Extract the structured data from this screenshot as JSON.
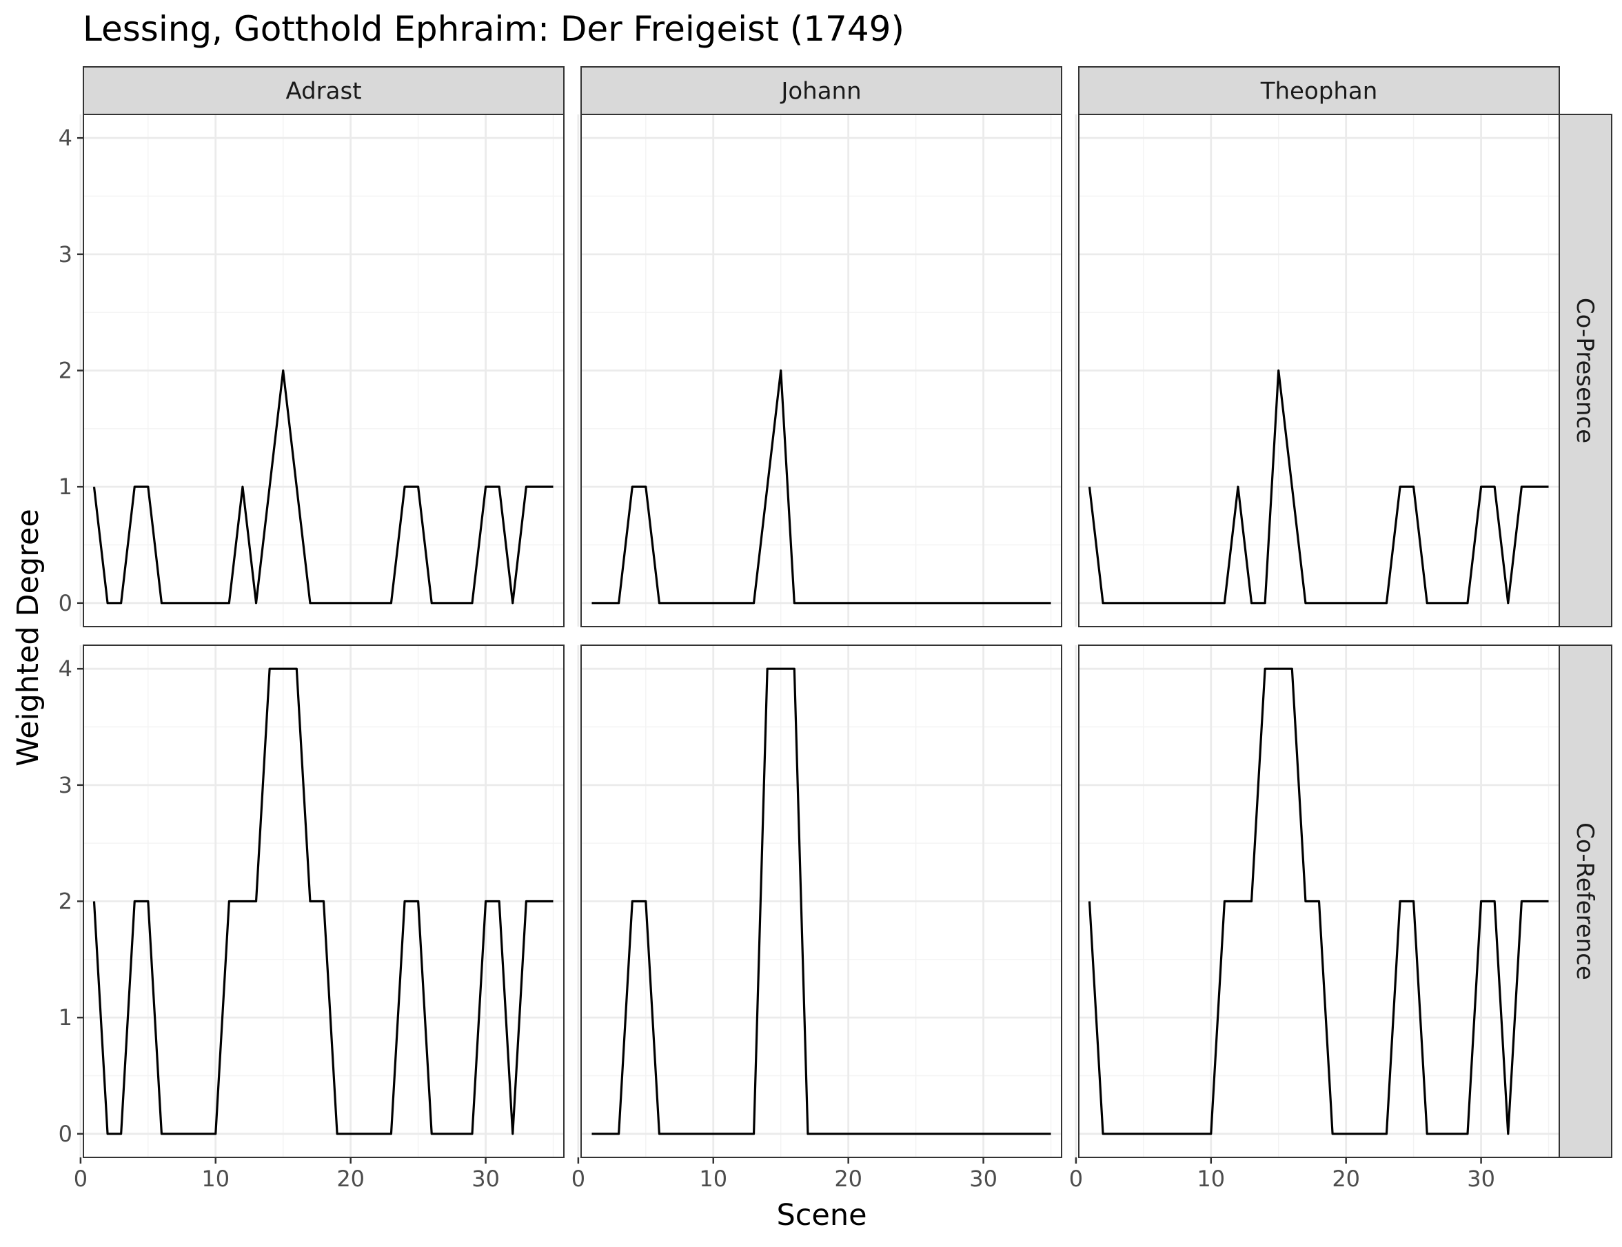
{
  "chart_data": {
    "type": "line",
    "title": "Lessing, Gotthold Ephraim: Der Freigeist (1749)",
    "xlabel": "Scene",
    "ylabel": "Weighted Degree",
    "xlim": [
      0,
      36
    ],
    "ylim": [
      0,
      4
    ],
    "x_ticks": [
      0,
      10,
      20,
      30
    ],
    "y_ticks": [
      0,
      1,
      2,
      3,
      4
    ],
    "grid": true,
    "columns": [
      "Adrast",
      "Johann",
      "Theophan"
    ],
    "rows": [
      "Co-Presence",
      "Co-Reference"
    ],
    "x": [
      1,
      2,
      3,
      4,
      5,
      6,
      7,
      8,
      9,
      10,
      11,
      12,
      13,
      14,
      15,
      16,
      17,
      18,
      19,
      20,
      21,
      22,
      23,
      24,
      25,
      26,
      27,
      28,
      29,
      30,
      31,
      32,
      33,
      34,
      35
    ],
    "panels": [
      {
        "column": "Adrast",
        "row": "Co-Presence",
        "values": [
          1,
          0,
          0,
          1,
          1,
          0,
          0,
          0,
          0,
          0,
          0,
          1,
          0,
          1,
          2,
          1,
          0,
          0,
          0,
          0,
          0,
          0,
          0,
          1,
          1,
          0,
          0,
          0,
          0,
          1,
          1,
          0,
          1,
          1,
          1
        ]
      },
      {
        "column": "Johann",
        "row": "Co-Presence",
        "values": [
          0,
          0,
          0,
          1,
          1,
          0,
          0,
          0,
          0,
          0,
          0,
          0,
          0,
          1,
          2,
          0,
          0,
          0,
          0,
          0,
          0,
          0,
          0,
          0,
          0,
          0,
          0,
          0,
          0,
          0,
          0,
          0,
          0,
          0,
          0
        ]
      },
      {
        "column": "Theophan",
        "row": "Co-Presence",
        "values": [
          1,
          0,
          0,
          0,
          0,
          0,
          0,
          0,
          0,
          0,
          0,
          1,
          0,
          0,
          2,
          1,
          0,
          0,
          0,
          0,
          0,
          0,
          0,
          1,
          1,
          0,
          0,
          0,
          0,
          1,
          1,
          0,
          1,
          1,
          1
        ]
      },
      {
        "column": "Adrast",
        "row": "Co-Reference",
        "values": [
          2,
          0,
          0,
          2,
          2,
          0,
          0,
          0,
          0,
          0,
          2,
          2,
          2,
          4,
          4,
          4,
          2,
          2,
          0,
          0,
          0,
          0,
          0,
          2,
          2,
          0,
          0,
          0,
          0,
          2,
          2,
          0,
          2,
          2,
          2
        ]
      },
      {
        "column": "Johann",
        "row": "Co-Reference",
        "values": [
          0,
          0,
          0,
          2,
          2,
          0,
          0,
          0,
          0,
          0,
          0,
          0,
          0,
          4,
          4,
          4,
          0,
          0,
          0,
          0,
          0,
          0,
          0,
          0,
          0,
          0,
          0,
          0,
          0,
          0,
          0,
          0,
          0,
          0,
          0
        ]
      },
      {
        "column": "Theophan",
        "row": "Co-Reference",
        "values": [
          2,
          0,
          0,
          0,
          0,
          0,
          0,
          0,
          0,
          0,
          2,
          2,
          2,
          4,
          4,
          4,
          2,
          2,
          0,
          0,
          0,
          0,
          0,
          2,
          2,
          0,
          0,
          0,
          0,
          2,
          2,
          0,
          2,
          2,
          2
        ]
      }
    ]
  }
}
